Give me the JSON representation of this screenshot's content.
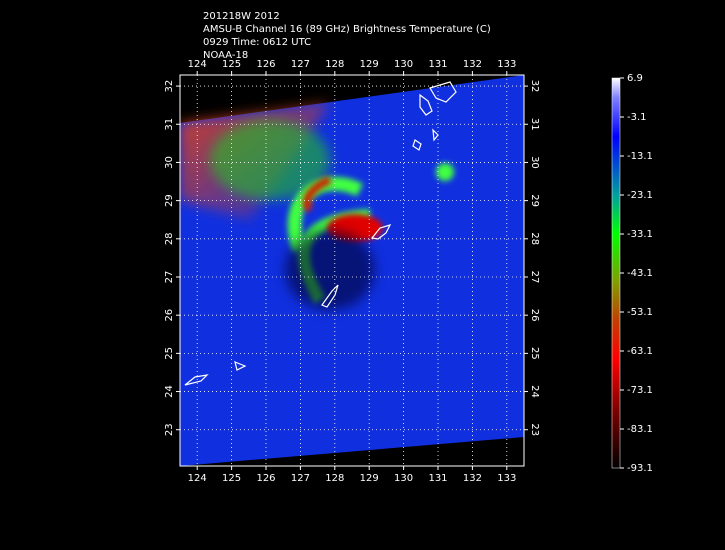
{
  "header": {
    "lines": [
      "201218W 2012",
      "AMSU-B Channel 16 (89 GHz) Brightness Temperature (C)",
      "0929 Time: 0612 UTC",
      "NOAA-18"
    ]
  },
  "map": {
    "lonlim": [
      123.5,
      133.5
    ],
    "latlim": [
      22.05,
      32.29
    ],
    "lon_ticks": [
      124,
      125,
      126,
      127,
      128,
      129,
      130,
      131,
      132,
      133
    ],
    "lat_ticks": [
      23,
      24,
      25,
      26,
      27,
      28,
      29,
      30,
      31,
      32
    ],
    "grid": true
  },
  "colorbar": {
    "lim": [
      -93.1,
      6.9
    ],
    "ticks": [
      6.9,
      -3.1,
      -13.1,
      -23.1,
      -33.1,
      -43.1,
      -53.1,
      -63.1,
      -73.1,
      -83.1,
      -93.1
    ]
  }
}
